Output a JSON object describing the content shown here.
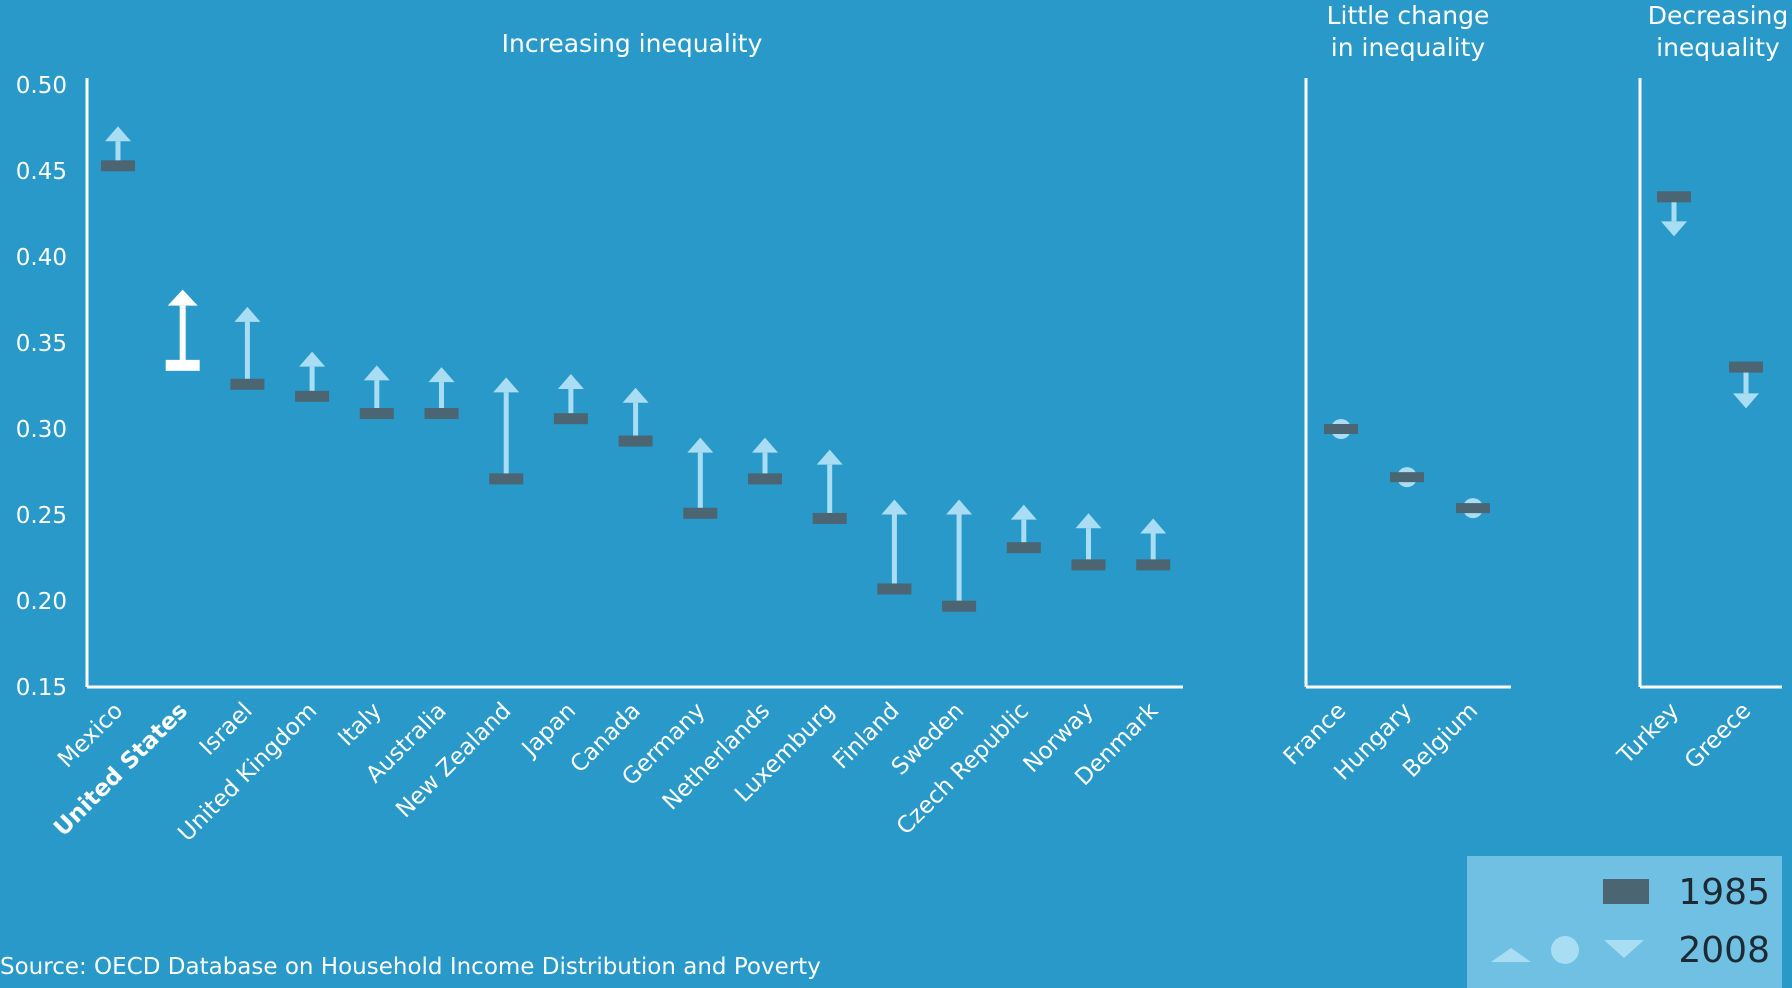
{
  "colors": {
    "background": "#2899c8",
    "axis": "#ffffff",
    "marker_1985": "#4b6572",
    "marker_2008": "#a9ddf3",
    "highlight": "#ffffff",
    "text": "#ffffff",
    "legend_bg": "#6fc0e3",
    "legend_text": "#1d2a33"
  },
  "source": "Source: OECD Database on Household Income Distribution and Poverty",
  "legend": {
    "label_1985": "1985",
    "label_2008": "2008",
    "icons_2008": [
      "triangle-up-icon",
      "circle-icon",
      "triangle-down-icon"
    ]
  },
  "chart_data": {
    "type": "dumbbell-arrow",
    "ylim": [
      0.15,
      0.5
    ],
    "yticks": [
      "0.50",
      "0.45",
      "0.40",
      "0.35",
      "0.30",
      "0.25",
      "0.20",
      "0.15"
    ],
    "highlight": "United States",
    "series": [
      {
        "name": "1985"
      },
      {
        "name": "2008"
      }
    ],
    "groups": [
      {
        "title": "Increasing inequality",
        "items": [
          {
            "country": "Mexico",
            "y1985": 0.453,
            "y2008": 0.476
          },
          {
            "country": "United States",
            "y1985": 0.337,
            "y2008": 0.381
          },
          {
            "country": "Israel",
            "y1985": 0.326,
            "y2008": 0.371
          },
          {
            "country": "United Kingdom",
            "y1985": 0.319,
            "y2008": 0.345
          },
          {
            "country": "Italy",
            "y1985": 0.309,
            "y2008": 0.337
          },
          {
            "country": "Australia",
            "y1985": 0.309,
            "y2008": 0.336
          },
          {
            "country": "New Zealand",
            "y1985": 0.271,
            "y2008": 0.33
          },
          {
            "country": "Japan",
            "y1985": 0.306,
            "y2008": 0.332
          },
          {
            "country": "Canada",
            "y1985": 0.293,
            "y2008": 0.324
          },
          {
            "country": "Germany",
            "y1985": 0.251,
            "y2008": 0.295
          },
          {
            "country": "Netherlands",
            "y1985": 0.271,
            "y2008": 0.295
          },
          {
            "country": "Luxemburg",
            "y1985": 0.248,
            "y2008": 0.288
          },
          {
            "country": "Finland",
            "y1985": 0.207,
            "y2008": 0.259
          },
          {
            "country": "Sweden",
            "y1985": 0.197,
            "y2008": 0.259
          },
          {
            "country": "Czech Republic",
            "y1985": 0.231,
            "y2008": 0.256
          },
          {
            "country": "Norway",
            "y1985": 0.221,
            "y2008": 0.251
          },
          {
            "country": "Denmark",
            "y1985": 0.221,
            "y2008": 0.248
          }
        ]
      },
      {
        "title": "Little change in inequality",
        "title_lines": [
          "Little change",
          "in inequality"
        ],
        "items": [
          {
            "country": "France",
            "y1985": 0.3,
            "y2008": 0.3
          },
          {
            "country": "Hungary",
            "y1985": 0.272,
            "y2008": 0.272
          },
          {
            "country": "Belgium",
            "y1985": 0.254,
            "y2008": 0.254
          }
        ]
      },
      {
        "title": "Decreasing inequality",
        "title_lines": [
          "Decreasing",
          "inequality"
        ],
        "items": [
          {
            "country": "Turkey",
            "y1985": 0.435,
            "y2008": 0.412
          },
          {
            "country": "Greece",
            "y1985": 0.336,
            "y2008": 0.312
          }
        ]
      }
    ]
  }
}
